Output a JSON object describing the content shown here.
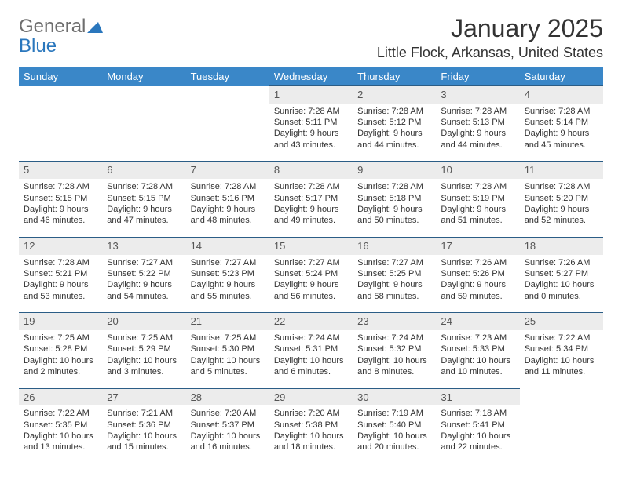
{
  "logo": {
    "text1": "General",
    "text2": "Blue"
  },
  "title": "January 2025",
  "location": "Little Flock, Arkansas, United States",
  "colors": {
    "header_bg": "#3a87c8",
    "header_text": "#ffffff",
    "daynum_bg": "#ececec",
    "row_border": "#2b5d86",
    "logo_gray": "#6e6e6e",
    "logo_blue": "#2a77bd",
    "body_text": "#333333",
    "page_bg": "#ffffff"
  },
  "day_names": [
    "Sunday",
    "Monday",
    "Tuesday",
    "Wednesday",
    "Thursday",
    "Friday",
    "Saturday"
  ],
  "weeks": [
    [
      null,
      null,
      null,
      {
        "n": "1",
        "sr": "Sunrise: 7:28 AM",
        "ss": "Sunset: 5:11 PM",
        "d1": "Daylight: 9 hours",
        "d2": "and 43 minutes."
      },
      {
        "n": "2",
        "sr": "Sunrise: 7:28 AM",
        "ss": "Sunset: 5:12 PM",
        "d1": "Daylight: 9 hours",
        "d2": "and 44 minutes."
      },
      {
        "n": "3",
        "sr": "Sunrise: 7:28 AM",
        "ss": "Sunset: 5:13 PM",
        "d1": "Daylight: 9 hours",
        "d2": "and 44 minutes."
      },
      {
        "n": "4",
        "sr": "Sunrise: 7:28 AM",
        "ss": "Sunset: 5:14 PM",
        "d1": "Daylight: 9 hours",
        "d2": "and 45 minutes."
      }
    ],
    [
      {
        "n": "5",
        "sr": "Sunrise: 7:28 AM",
        "ss": "Sunset: 5:15 PM",
        "d1": "Daylight: 9 hours",
        "d2": "and 46 minutes."
      },
      {
        "n": "6",
        "sr": "Sunrise: 7:28 AM",
        "ss": "Sunset: 5:15 PM",
        "d1": "Daylight: 9 hours",
        "d2": "and 47 minutes."
      },
      {
        "n": "7",
        "sr": "Sunrise: 7:28 AM",
        "ss": "Sunset: 5:16 PM",
        "d1": "Daylight: 9 hours",
        "d2": "and 48 minutes."
      },
      {
        "n": "8",
        "sr": "Sunrise: 7:28 AM",
        "ss": "Sunset: 5:17 PM",
        "d1": "Daylight: 9 hours",
        "d2": "and 49 minutes."
      },
      {
        "n": "9",
        "sr": "Sunrise: 7:28 AM",
        "ss": "Sunset: 5:18 PM",
        "d1": "Daylight: 9 hours",
        "d2": "and 50 minutes."
      },
      {
        "n": "10",
        "sr": "Sunrise: 7:28 AM",
        "ss": "Sunset: 5:19 PM",
        "d1": "Daylight: 9 hours",
        "d2": "and 51 minutes."
      },
      {
        "n": "11",
        "sr": "Sunrise: 7:28 AM",
        "ss": "Sunset: 5:20 PM",
        "d1": "Daylight: 9 hours",
        "d2": "and 52 minutes."
      }
    ],
    [
      {
        "n": "12",
        "sr": "Sunrise: 7:28 AM",
        "ss": "Sunset: 5:21 PM",
        "d1": "Daylight: 9 hours",
        "d2": "and 53 minutes."
      },
      {
        "n": "13",
        "sr": "Sunrise: 7:27 AM",
        "ss": "Sunset: 5:22 PM",
        "d1": "Daylight: 9 hours",
        "d2": "and 54 minutes."
      },
      {
        "n": "14",
        "sr": "Sunrise: 7:27 AM",
        "ss": "Sunset: 5:23 PM",
        "d1": "Daylight: 9 hours",
        "d2": "and 55 minutes."
      },
      {
        "n": "15",
        "sr": "Sunrise: 7:27 AM",
        "ss": "Sunset: 5:24 PM",
        "d1": "Daylight: 9 hours",
        "d2": "and 56 minutes."
      },
      {
        "n": "16",
        "sr": "Sunrise: 7:27 AM",
        "ss": "Sunset: 5:25 PM",
        "d1": "Daylight: 9 hours",
        "d2": "and 58 minutes."
      },
      {
        "n": "17",
        "sr": "Sunrise: 7:26 AM",
        "ss": "Sunset: 5:26 PM",
        "d1": "Daylight: 9 hours",
        "d2": "and 59 minutes."
      },
      {
        "n": "18",
        "sr": "Sunrise: 7:26 AM",
        "ss": "Sunset: 5:27 PM",
        "d1": "Daylight: 10 hours",
        "d2": "and 0 minutes."
      }
    ],
    [
      {
        "n": "19",
        "sr": "Sunrise: 7:25 AM",
        "ss": "Sunset: 5:28 PM",
        "d1": "Daylight: 10 hours",
        "d2": "and 2 minutes."
      },
      {
        "n": "20",
        "sr": "Sunrise: 7:25 AM",
        "ss": "Sunset: 5:29 PM",
        "d1": "Daylight: 10 hours",
        "d2": "and 3 minutes."
      },
      {
        "n": "21",
        "sr": "Sunrise: 7:25 AM",
        "ss": "Sunset: 5:30 PM",
        "d1": "Daylight: 10 hours",
        "d2": "and 5 minutes."
      },
      {
        "n": "22",
        "sr": "Sunrise: 7:24 AM",
        "ss": "Sunset: 5:31 PM",
        "d1": "Daylight: 10 hours",
        "d2": "and 6 minutes."
      },
      {
        "n": "23",
        "sr": "Sunrise: 7:24 AM",
        "ss": "Sunset: 5:32 PM",
        "d1": "Daylight: 10 hours",
        "d2": "and 8 minutes."
      },
      {
        "n": "24",
        "sr": "Sunrise: 7:23 AM",
        "ss": "Sunset: 5:33 PM",
        "d1": "Daylight: 10 hours",
        "d2": "and 10 minutes."
      },
      {
        "n": "25",
        "sr": "Sunrise: 7:22 AM",
        "ss": "Sunset: 5:34 PM",
        "d1": "Daylight: 10 hours",
        "d2": "and 11 minutes."
      }
    ],
    [
      {
        "n": "26",
        "sr": "Sunrise: 7:22 AM",
        "ss": "Sunset: 5:35 PM",
        "d1": "Daylight: 10 hours",
        "d2": "and 13 minutes."
      },
      {
        "n": "27",
        "sr": "Sunrise: 7:21 AM",
        "ss": "Sunset: 5:36 PM",
        "d1": "Daylight: 10 hours",
        "d2": "and 15 minutes."
      },
      {
        "n": "28",
        "sr": "Sunrise: 7:20 AM",
        "ss": "Sunset: 5:37 PM",
        "d1": "Daylight: 10 hours",
        "d2": "and 16 minutes."
      },
      {
        "n": "29",
        "sr": "Sunrise: 7:20 AM",
        "ss": "Sunset: 5:38 PM",
        "d1": "Daylight: 10 hours",
        "d2": "and 18 minutes."
      },
      {
        "n": "30",
        "sr": "Sunrise: 7:19 AM",
        "ss": "Sunset: 5:40 PM",
        "d1": "Daylight: 10 hours",
        "d2": "and 20 minutes."
      },
      {
        "n": "31",
        "sr": "Sunrise: 7:18 AM",
        "ss": "Sunset: 5:41 PM",
        "d1": "Daylight: 10 hours",
        "d2": "and 22 minutes."
      },
      null
    ]
  ]
}
